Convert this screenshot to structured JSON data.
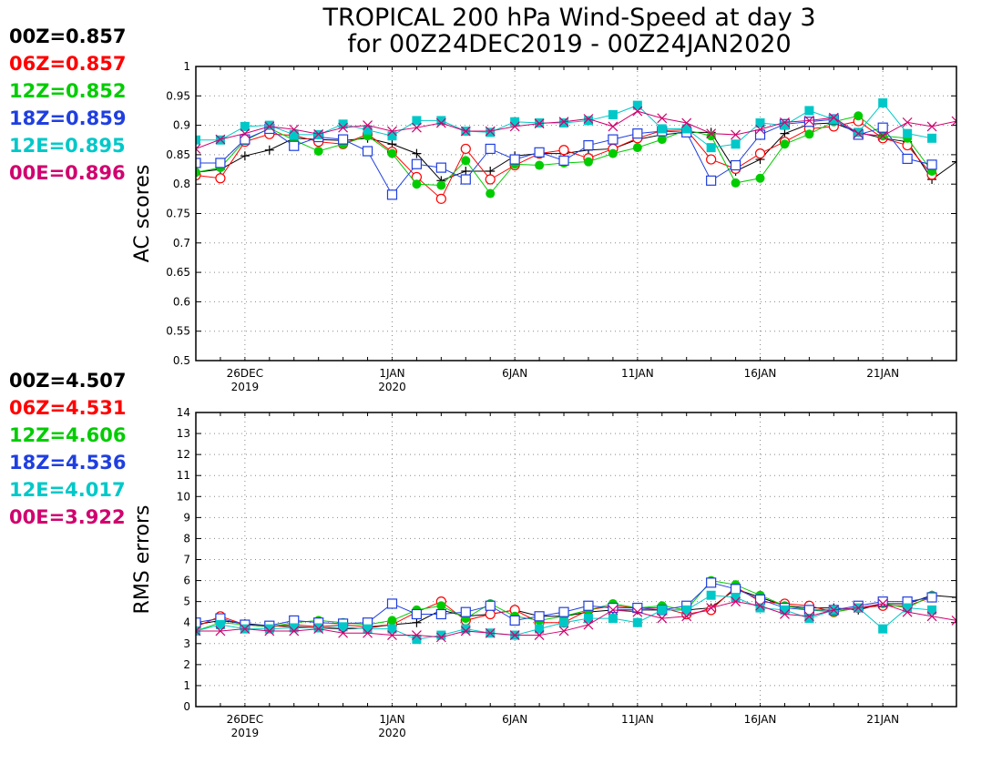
{
  "title_line1": "TROPICAL 200 hPa Wind-Speed at day 3",
  "title_line2": "for 00Z24DEC2019 - 00Z24JAN2020",
  "colors": {
    "00Z": "#000000",
    "06Z": "#ff0000",
    "12Z": "#00cc00",
    "18Z": "#1f3fe0",
    "12E": "#00c8c8",
    "00E": "#d0006f"
  },
  "chart_data": [
    {
      "type": "line",
      "ylabel": "AC scores",
      "ylim": [
        0.5,
        1
      ],
      "yticks": [
        "0.5",
        "0.55",
        "0.6",
        "0.65",
        "0.7",
        "0.75",
        "0.8",
        "0.85",
        "0.9",
        "0.95",
        "1"
      ],
      "x_start": 0,
      "x_end": 31,
      "xticks": [
        {
          "label": "26DEC",
          "sub": "2019",
          "x": 2
        },
        {
          "label": "1JAN",
          "sub": "2020",
          "x": 8
        },
        {
          "label": "6JAN",
          "sub": "",
          "x": 13
        },
        {
          "label": "11JAN",
          "sub": "",
          "x": 18
        },
        {
          "label": "16JAN",
          "sub": "",
          "x": 23
        },
        {
          "label": "21JAN",
          "sub": "",
          "x": 28
        }
      ],
      "grid": true,
      "legend_entries": [
        "00Z=0.857",
        "06Z=0.857",
        "12Z=0.852",
        "18Z=0.859",
        "12E=0.895",
        "00E=0.896"
      ],
      "series": [
        {
          "name": "00Z",
          "marker": "plus",
          "values": [
            0.82,
            0.825,
            0.848,
            0.858,
            0.878,
            0.876,
            0.874,
            0.878,
            0.868,
            0.852,
            0.806,
            0.822,
            0.822,
            0.848,
            0.852,
            0.852,
            0.858,
            0.86,
            0.876,
            0.884,
            0.888,
            0.888,
            0.822,
            0.842,
            0.886,
            0.902,
            0.904,
            0.888,
            0.878,
            0.872,
            0.808,
            0.838
          ]
        },
        {
          "name": "06Z",
          "marker": "circle",
          "values": [
            0.815,
            0.81,
            0.872,
            0.885,
            0.883,
            0.872,
            0.868,
            0.885,
            0.855,
            0.812,
            0.775,
            0.86,
            0.808,
            0.832,
            0.852,
            0.858,
            0.844,
            0.86,
            0.878,
            0.891,
            0.892,
            0.842,
            0.826,
            0.852,
            0.872,
            0.894,
            0.898,
            0.907,
            0.878,
            0.866,
            0.816,
            null
          ]
        },
        {
          "name": "12Z",
          "marker": "filled-circle",
          "values": [
            0.82,
            0.828,
            0.874,
            0.895,
            0.875,
            0.856,
            0.868,
            0.882,
            0.852,
            0.8,
            0.798,
            0.84,
            0.784,
            0.834,
            0.832,
            0.836,
            0.838,
            0.852,
            0.862,
            0.876,
            0.892,
            0.882,
            0.802,
            0.81,
            0.868,
            0.885,
            0.906,
            0.916,
            0.882,
            0.878,
            0.822,
            null
          ]
        },
        {
          "name": "18Z",
          "marker": "square",
          "values": [
            0.836,
            0.836,
            0.876,
            0.894,
            0.865,
            0.88,
            0.876,
            0.856,
            0.782,
            0.834,
            0.828,
            0.808,
            0.86,
            0.842,
            0.854,
            0.84,
            0.866,
            0.876,
            0.886,
            0.89,
            0.888,
            0.806,
            0.832,
            0.884,
            0.902,
            0.906,
            0.91,
            0.884,
            0.896,
            0.843,
            0.833,
            null
          ]
        },
        {
          "name": "12E",
          "marker": "filled-square",
          "values": [
            0.875,
            0.875,
            0.898,
            0.9,
            0.884,
            0.884,
            0.902,
            0.892,
            0.882,
            0.908,
            0.908,
            0.89,
            0.888,
            0.906,
            0.904,
            0.904,
            0.908,
            0.918,
            0.934,
            0.894,
            0.894,
            0.862,
            0.868,
            0.904,
            0.9,
            0.925,
            0.91,
            0.888,
            0.938,
            0.886,
            0.878,
            null
          ]
        },
        {
          "name": "00E",
          "marker": "x",
          "values": [
            0.86,
            0.876,
            0.886,
            0.898,
            0.893,
            0.885,
            0.896,
            0.9,
            0.89,
            0.896,
            0.904,
            0.89,
            0.89,
            0.898,
            0.903,
            0.906,
            0.911,
            0.898,
            0.924,
            0.912,
            0.904,
            0.886,
            0.884,
            0.893,
            0.905,
            0.908,
            0.913,
            0.886,
            0.882,
            0.905,
            0.898,
            0.907
          ]
        }
      ]
    },
    {
      "type": "line",
      "ylabel": "RMS errors",
      "ylim": [
        0,
        14
      ],
      "yticks": [
        "0",
        "1",
        "2",
        "3",
        "4",
        "5",
        "6",
        "7",
        "8",
        "9",
        "10",
        "11",
        "12",
        "13",
        "14"
      ],
      "x_start": 0,
      "x_end": 31,
      "xticks": [
        {
          "label": "26DEC",
          "sub": "2019",
          "x": 2
        },
        {
          "label": "1JAN",
          "sub": "2020",
          "x": 8
        },
        {
          "label": "6JAN",
          "sub": "",
          "x": 13
        },
        {
          "label": "11JAN",
          "sub": "",
          "x": 18
        },
        {
          "label": "16JAN",
          "sub": "",
          "x": 23
        },
        {
          "label": "21JAN",
          "sub": "",
          "x": 28
        }
      ],
      "grid": true,
      "legend_entries": [
        "00Z=4.507",
        "06Z=4.531",
        "12Z=4.606",
        "18Z=4.536",
        "12E=4.017",
        "00E=3.922"
      ],
      "series": [
        {
          "name": "00Z",
          "marker": "plus",
          "values": [
            3.9,
            4.1,
            3.95,
            3.85,
            3.8,
            3.75,
            3.7,
            3.75,
            3.9,
            4.0,
            4.6,
            4.3,
            4.4,
            4.6,
            4.3,
            4.3,
            4.5,
            4.6,
            4.6,
            4.6,
            4.6,
            4.7,
            5.6,
            5.2,
            4.8,
            4.7,
            4.7,
            4.6,
            4.9,
            4.9,
            5.3,
            5.2
          ]
        },
        {
          "name": "06Z",
          "marker": "circle",
          "values": [
            3.8,
            4.3,
            3.9,
            3.8,
            3.9,
            3.8,
            3.9,
            3.8,
            3.9,
            4.5,
            5.0,
            4.1,
            4.4,
            4.6,
            4.0,
            4.0,
            4.6,
            4.8,
            4.7,
            4.7,
            4.4,
            4.6,
            5.7,
            5.0,
            4.9,
            4.8,
            4.5,
            4.7,
            4.8,
            4.8,
            5.2,
            null
          ]
        },
        {
          "name": "12Z",
          "marker": "filled-circle",
          "values": [
            3.6,
            4.0,
            3.9,
            3.8,
            4.0,
            4.1,
            4.0,
            3.9,
            4.1,
            4.6,
            4.8,
            4.2,
            4.9,
            4.3,
            4.1,
            4.3,
            4.6,
            4.9,
            4.7,
            4.8,
            4.6,
            6.0,
            5.8,
            5.3,
            4.8,
            4.6,
            4.5,
            4.7,
            4.9,
            4.7,
            5.3,
            null
          ]
        },
        {
          "name": "18Z",
          "marker": "square",
          "values": [
            4.0,
            4.2,
            3.9,
            3.85,
            4.1,
            4.0,
            3.95,
            4.0,
            4.9,
            4.4,
            4.4,
            4.5,
            4.8,
            4.1,
            4.3,
            4.5,
            4.8,
            4.7,
            4.7,
            4.6,
            4.8,
            5.9,
            5.6,
            5.1,
            4.7,
            4.6,
            4.6,
            4.8,
            5.0,
            5.0,
            5.2,
            null
          ]
        },
        {
          "name": "12E",
          "marker": "filled-square",
          "values": [
            3.6,
            3.9,
            3.7,
            3.7,
            3.75,
            3.75,
            3.8,
            3.7,
            3.7,
            3.2,
            3.4,
            3.7,
            3.5,
            3.4,
            3.7,
            4.0,
            4.2,
            4.2,
            4.0,
            4.6,
            4.6,
            5.3,
            5.2,
            4.7,
            4.6,
            4.2,
            4.6,
            4.7,
            3.7,
            4.7,
            4.6,
            null
          ]
        },
        {
          "name": "00E",
          "marker": "x",
          "values": [
            3.6,
            3.6,
            3.7,
            3.6,
            3.6,
            3.7,
            3.5,
            3.5,
            3.4,
            3.4,
            3.3,
            3.6,
            3.5,
            3.4,
            3.4,
            3.6,
            3.9,
            4.6,
            4.5,
            4.2,
            4.3,
            4.7,
            5.0,
            4.8,
            4.4,
            4.3,
            4.6,
            4.7,
            4.9,
            4.5,
            4.3,
            4.1
          ]
        }
      ]
    }
  ]
}
